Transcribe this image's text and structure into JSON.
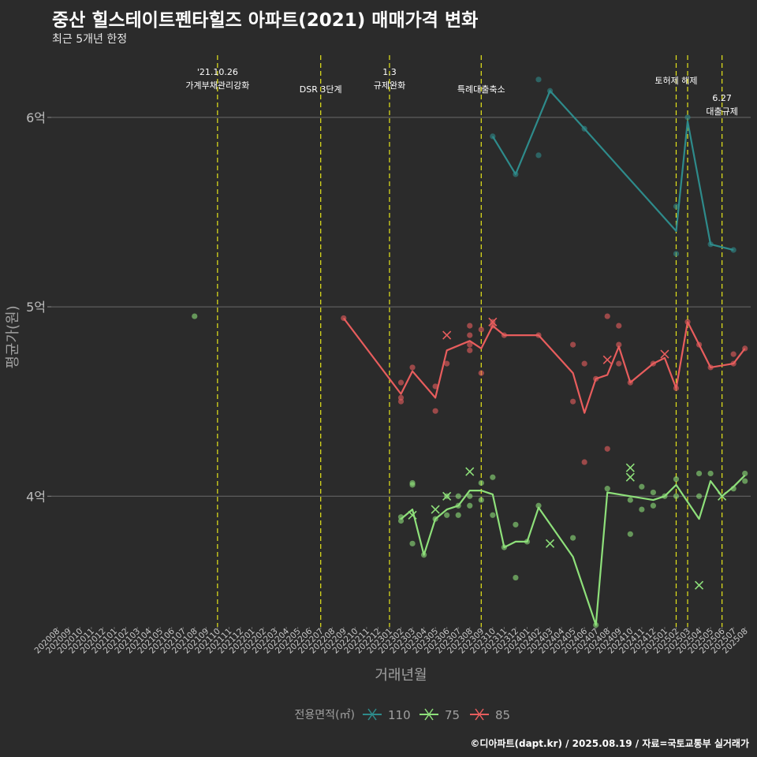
{
  "title": "중산 힐스테이트펜타힐즈 아파트(2021) 매매가격 변화",
  "subtitle": "최근 5개년 한정",
  "caption": "©디아파트(dapt.kr) / 2025.08.19 / 자료=국토교통부 실거래가",
  "chart_data": {
    "type": "line",
    "xlabel": "거래년월",
    "ylabel": "평균가(원)",
    "ylim": [
      33100,
      63700
    ],
    "y_ticks": [
      {
        "value": 40000,
        "label": "4억"
      },
      {
        "value": 50000,
        "label": "5억"
      },
      {
        "value": 60000,
        "label": "6억"
      }
    ],
    "categories": [
      "202008",
      "202009",
      "202010",
      "202011",
      "202012",
      "202101",
      "202102",
      "202103",
      "202104",
      "202105",
      "202106",
      "202107",
      "202108",
      "202109",
      "202110",
      "202111",
      "202112",
      "202201",
      "202202",
      "202203",
      "202204",
      "202205",
      "202206",
      "202207",
      "202208",
      "202209",
      "202210",
      "202211",
      "202212",
      "202301",
      "202302",
      "202303",
      "202304",
      "202305",
      "202306",
      "202307",
      "202308",
      "202309",
      "202310",
      "202311",
      "202312",
      "202401",
      "202402",
      "202403",
      "202404",
      "202405",
      "202406",
      "202407",
      "202408",
      "202409",
      "202410",
      "202411",
      "202412",
      "202501",
      "202502",
      "202503",
      "202504",
      "202505",
      "202506",
      "202507",
      "202508"
    ],
    "grid": true,
    "legend": {
      "title": "전용면적(㎡)",
      "position": "bottom",
      "items": [
        "110",
        "75",
        "85"
      ]
    },
    "colors": {
      "110": "#2e8b8b",
      "75": "#8ee07a",
      "85": "#e85d5d",
      "event_line": "#e6e61a",
      "grid": "#6b6b6b",
      "text": "#a0a0a0"
    },
    "events": [
      {
        "month": "202110",
        "lines": [
          "'21.10.26",
          "가계부채관리강화"
        ],
        "level": 0
      },
      {
        "month": "202207",
        "lines": [
          "DSR 3단계"
        ],
        "level": 1
      },
      {
        "month": "202301",
        "lines": [
          "1.3",
          "규제완화"
        ],
        "level": 0
      },
      {
        "month": "202309",
        "lines": [
          "특례대출축소"
        ],
        "level": 1
      },
      {
        "month": "202502",
        "lines": [
          "토허제 해제"
        ],
        "level": 0.5
      },
      {
        "month": "202503",
        "lines": [],
        "level": 0
      },
      {
        "month": "202506",
        "lines": [
          "6.27",
          "대출규제"
        ],
        "level": 1.5
      }
    ],
    "series": [
      {
        "name": "110",
        "line": [
          [
            "202310",
            59000
          ],
          [
            "202312",
            57000
          ],
          [
            "202403",
            61400
          ],
          [
            "202406",
            59400
          ],
          [
            "202502",
            54000
          ],
          [
            "202503",
            59800
          ],
          [
            "202505",
            53300
          ],
          [
            "202507",
            53000
          ]
        ],
        "points": [
          [
            "202310",
            59000
          ],
          [
            "202312",
            57000
          ],
          [
            "202402",
            62000
          ],
          [
            "202402",
            58000
          ],
          [
            "202403",
            61400
          ],
          [
            "202406",
            59400
          ],
          [
            "202502",
            55300
          ],
          [
            "202502",
            52800
          ],
          [
            "202503",
            60000
          ],
          [
            "202505",
            53300
          ],
          [
            "202507",
            53000
          ]
        ],
        "crosses": []
      },
      {
        "name": "75",
        "line": [
          [
            "202302",
            38800
          ],
          [
            "202303",
            39300
          ],
          [
            "202304",
            36900
          ],
          [
            "202305",
            38800
          ],
          [
            "202306",
            39300
          ],
          [
            "202307",
            39500
          ],
          [
            "202308",
            40300
          ],
          [
            "202309",
            40300
          ],
          [
            "202310",
            40100
          ],
          [
            "202311",
            37300
          ],
          [
            "202312",
            37600
          ],
          [
            "202401",
            37600
          ],
          [
            "202402",
            39400
          ],
          [
            "202403",
            null
          ],
          [
            "202405",
            36800
          ],
          [
            "202407",
            33200
          ],
          [
            "202408",
            40200
          ],
          [
            "202410",
            40000
          ],
          [
            "202412",
            39800
          ],
          [
            "202501",
            40000
          ],
          [
            "202502",
            40600
          ],
          [
            "202504",
            38800
          ],
          [
            "202505",
            40800
          ],
          [
            "202506",
            40000
          ],
          [
            "202507",
            40500
          ],
          [
            "202508",
            41100
          ]
        ],
        "points": [
          [
            "202108",
            49500
          ],
          [
            "202302",
            38700
          ],
          [
            "202302",
            38900
          ],
          [
            "202303",
            37500
          ],
          [
            "202303",
            40600
          ],
          [
            "202303",
            40700
          ],
          [
            "202304",
            36900
          ],
          [
            "202305",
            38800
          ],
          [
            "202306",
            39000
          ],
          [
            "202306",
            40000
          ],
          [
            "202307",
            39000
          ],
          [
            "202307",
            39500
          ],
          [
            "202307",
            40000
          ],
          [
            "202308",
            40000
          ],
          [
            "202308",
            39500
          ],
          [
            "202309",
            39800
          ],
          [
            "202309",
            40700
          ],
          [
            "202310",
            39000
          ],
          [
            "202310",
            41000
          ],
          [
            "202311",
            37300
          ],
          [
            "202312",
            38500
          ],
          [
            "202312",
            35700
          ],
          [
            "202401",
            37600
          ],
          [
            "202402",
            39500
          ],
          [
            "202405",
            37800
          ],
          [
            "202407",
            33200
          ],
          [
            "202408",
            40400
          ],
          [
            "202409",
            null
          ],
          [
            "202410",
            38000
          ],
          [
            "202410",
            39800
          ],
          [
            "202411",
            39300
          ],
          [
            "202411",
            40500
          ],
          [
            "202412",
            39500
          ],
          [
            "202412",
            40200
          ],
          [
            "202501",
            40000
          ],
          [
            "202502",
            40900
          ],
          [
            "202502",
            40000
          ],
          [
            "202504",
            41200
          ],
          [
            "202504",
            40000
          ],
          [
            "202505",
            41200
          ],
          [
            "202507",
            40400
          ],
          [
            "202508",
            41200
          ],
          [
            "202508",
            40800
          ]
        ],
        "crosses": [
          [
            "202303",
            39000
          ],
          [
            "202305",
            39300
          ],
          [
            "202306",
            40000
          ],
          [
            "202308",
            41300
          ],
          [
            "202403",
            37500
          ],
          [
            "202410",
            41500
          ],
          [
            "202410",
            41000
          ],
          [
            "202504",
            35300
          ],
          [
            "202506",
            40000
          ]
        ]
      },
      {
        "name": "85",
        "line": [
          [
            "202209",
            49400
          ],
          [
            "202302",
            45400
          ],
          [
            "202303",
            46600
          ],
          [
            "202305",
            45200
          ],
          [
            "202306",
            47700
          ],
          [
            "202308",
            48200
          ],
          [
            "202309",
            47800
          ],
          [
            "202310",
            49000
          ],
          [
            "202311",
            48500
          ],
          [
            "202402",
            48500
          ],
          [
            "202405",
            46500
          ],
          [
            "202406",
            44400
          ],
          [
            "202407",
            46200
          ],
          [
            "202408",
            46400
          ],
          [
            "202409",
            47900
          ],
          [
            "202410",
            46000
          ],
          [
            "202412",
            47000
          ],
          [
            "202501",
            47300
          ],
          [
            "202502",
            45700
          ],
          [
            "202503",
            49200
          ],
          [
            "202504",
            48000
          ],
          [
            "202505",
            46800
          ],
          [
            "202507",
            47000
          ],
          [
            "202508",
            47800
          ]
        ],
        "points": [
          [
            "202209",
            49400
          ],
          [
            "202302",
            46000
          ],
          [
            "202302",
            45200
          ],
          [
            "202302",
            45000
          ],
          [
            "202303",
            46800
          ],
          [
            "202305",
            45800
          ],
          [
            "202305",
            44500
          ],
          [
            "202306",
            47000
          ],
          [
            "202308",
            49000
          ],
          [
            "202308",
            48000
          ],
          [
            "202308",
            47700
          ],
          [
            "202308",
            48500
          ],
          [
            "202309",
            48800
          ],
          [
            "202309",
            46500
          ],
          [
            "202310",
            49000
          ],
          [
            "202310",
            49200
          ],
          [
            "202311",
            48500
          ],
          [
            "202402",
            48500
          ],
          [
            "202405",
            48000
          ],
          [
            "202405",
            45000
          ],
          [
            "202406",
            47000
          ],
          [
            "202406",
            41800
          ],
          [
            "202407",
            46200
          ],
          [
            "202408",
            49500
          ],
          [
            "202408",
            42500
          ],
          [
            "202409",
            49000
          ],
          [
            "202409",
            48000
          ],
          [
            "202409",
            47000
          ],
          [
            "202410",
            46000
          ],
          [
            "202412",
            47000
          ],
          [
            "202502",
            45700
          ],
          [
            "202503",
            49200
          ],
          [
            "202504",
            48000
          ],
          [
            "202505",
            46800
          ],
          [
            "202507",
            47000
          ],
          [
            "202507",
            47500
          ],
          [
            "202508",
            47800
          ]
        ],
        "crosses": [
          [
            "202306",
            48500
          ],
          [
            "202310",
            49200
          ],
          [
            "202408",
            47200
          ],
          [
            "202501",
            47500
          ]
        ]
      }
    ]
  }
}
